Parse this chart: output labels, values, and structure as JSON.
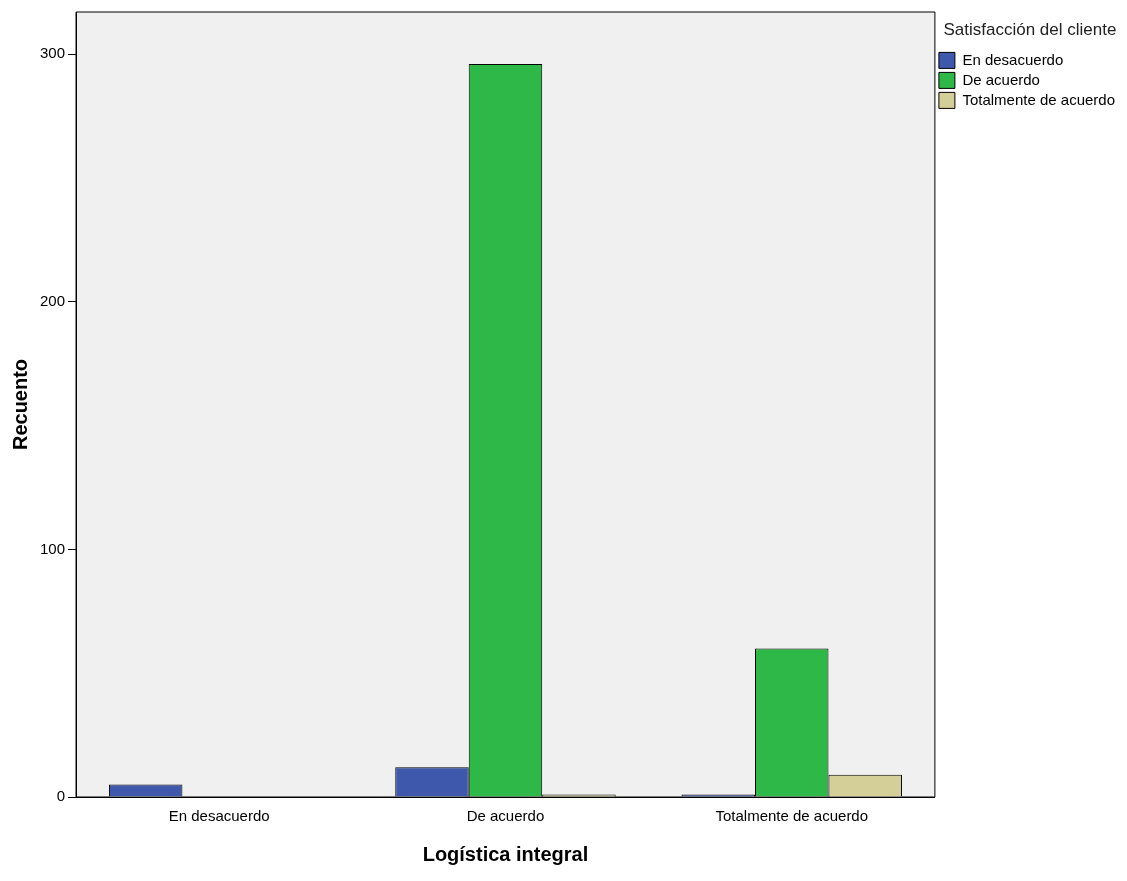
{
  "chart_data": {
    "type": "bar",
    "xlabel": "Logística integral",
    "ylabel": "Recuento",
    "legend_title": "Satisfacción del cliente",
    "legend": "top right",
    "grid": false,
    "categories": [
      "En desacuerdo",
      "De acuerdo",
      "Totalmente de acuerdo"
    ],
    "series": [
      {
        "name": "En desacuerdo",
        "color": "#3e58ac",
        "values": [
          5,
          12,
          1
        ]
      },
      {
        "name": "De acuerdo",
        "color": "#2eb848",
        "values": [
          null,
          296,
          60
        ]
      },
      {
        "name": "Totalmente de acuerdo",
        "color": "#d4cf98",
        "values": [
          null,
          1,
          9
        ]
      }
    ],
    "ylim": [
      0,
      317
    ],
    "yticks": [
      0,
      100,
      200,
      300
    ]
  }
}
